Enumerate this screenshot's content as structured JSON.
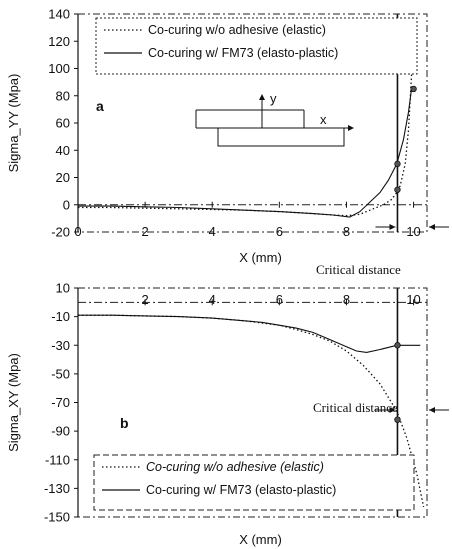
{
  "chart_data": [
    {
      "panel": "a",
      "type": "line",
      "xlabel": "X (mm)",
      "ylabel": "Sigma_YY (Mpa)",
      "xlim": [
        0,
        10.4
      ],
      "ylim": [
        -20,
        140
      ],
      "xticks": [
        0,
        2,
        4,
        6,
        8,
        10
      ],
      "yticks": [
        -20,
        0,
        20,
        40,
        60,
        80,
        100,
        120,
        140
      ],
      "inset_labels": {
        "y": "y",
        "x": "x"
      },
      "annotation": "Critical distance",
      "legend_position": "top-right",
      "series": [
        {
          "name": "Co-curing w/o adhesive (elastic)",
          "style": "dotted",
          "x": [
            0,
            1,
            2,
            3,
            4,
            5,
            6,
            7,
            7.6,
            8,
            8.4,
            8.8,
            9.1,
            9.35,
            9.5,
            9.6,
            9.75,
            9.85,
            9.95,
            10.0
          ],
          "y": [
            -2,
            -2,
            -2.5,
            -3,
            -3.5,
            -4,
            -5,
            -6.5,
            -7.5,
            -8,
            -7,
            -3,
            0,
            4,
            9,
            14,
            30,
            55,
            100,
            138
          ]
        },
        {
          "name": "Co-curing w/ FM73 (elasto-plastic)",
          "style": "solid",
          "x": [
            0,
            1,
            2,
            3,
            4,
            5,
            6,
            7,
            7.6,
            8.1,
            8.4,
            8.7,
            9.0,
            9.25,
            9.5,
            9.7,
            9.85,
            9.95
          ],
          "y": [
            -1,
            -1,
            -1.5,
            -2,
            -3,
            -4,
            -5,
            -6.5,
            -7.5,
            -9,
            -5,
            2,
            9,
            18,
            30,
            48,
            68,
            87
          ]
        }
      ],
      "markers": [
        {
          "x": 9.52,
          "y": 30
        },
        {
          "x": 9.52,
          "y": 11
        },
        {
          "x": 10.0,
          "y": 85
        }
      ],
      "critical_line_x": 9.52
    },
    {
      "panel": "b",
      "type": "line",
      "xlabel": "X (mm)",
      "ylabel": "Sigma_XY (Mpa)",
      "xlim": [
        0,
        10.4
      ],
      "ylim": [
        -150,
        10
      ],
      "xticks": [
        0,
        2,
        4,
        6,
        8,
        10
      ],
      "xtick_labels_shown": [
        "",
        "2",
        "4",
        "6",
        "8",
        "10"
      ],
      "yticks": [
        10,
        -10,
        -30,
        -50,
        -70,
        -90,
        -110,
        -130,
        -150
      ],
      "annotation": "Critical distance",
      "legend_position": "bottom-left",
      "series": [
        {
          "name": "Co-curing w/o adhesive (elastic)",
          "style": "dotted",
          "x": [
            0,
            1,
            2,
            3,
            4,
            5,
            5.5,
            6,
            6.5,
            7,
            7.5,
            8,
            8.5,
            9,
            9.5,
            9.8,
            10.1,
            10.3
          ],
          "y": [
            -9,
            -9,
            -9.5,
            -10,
            -11,
            -13,
            -14.5,
            -16,
            -19,
            -22.5,
            -27,
            -34,
            -44,
            -57,
            -76,
            -95,
            -120,
            -143
          ]
        },
        {
          "name": "Co-curing w/ FM73 (elasto-plastic)",
          "style": "solid",
          "x": [
            0,
            1,
            2,
            3,
            4,
            5,
            5.5,
            6,
            6.5,
            7,
            7.5,
            8,
            8.3,
            8.6,
            9.0,
            9.5,
            9.9,
            10.2
          ],
          "y": [
            -9,
            -9,
            -9.5,
            -10,
            -11,
            -13,
            -14,
            -16,
            -18,
            -21,
            -26,
            -31,
            -34,
            -35,
            -33,
            -30,
            -30,
            -30
          ]
        }
      ],
      "markers": [
        {
          "x": 9.52,
          "y": -30
        },
        {
          "x": 9.52,
          "y": -82
        }
      ],
      "critical_line_x": 9.52
    }
  ]
}
